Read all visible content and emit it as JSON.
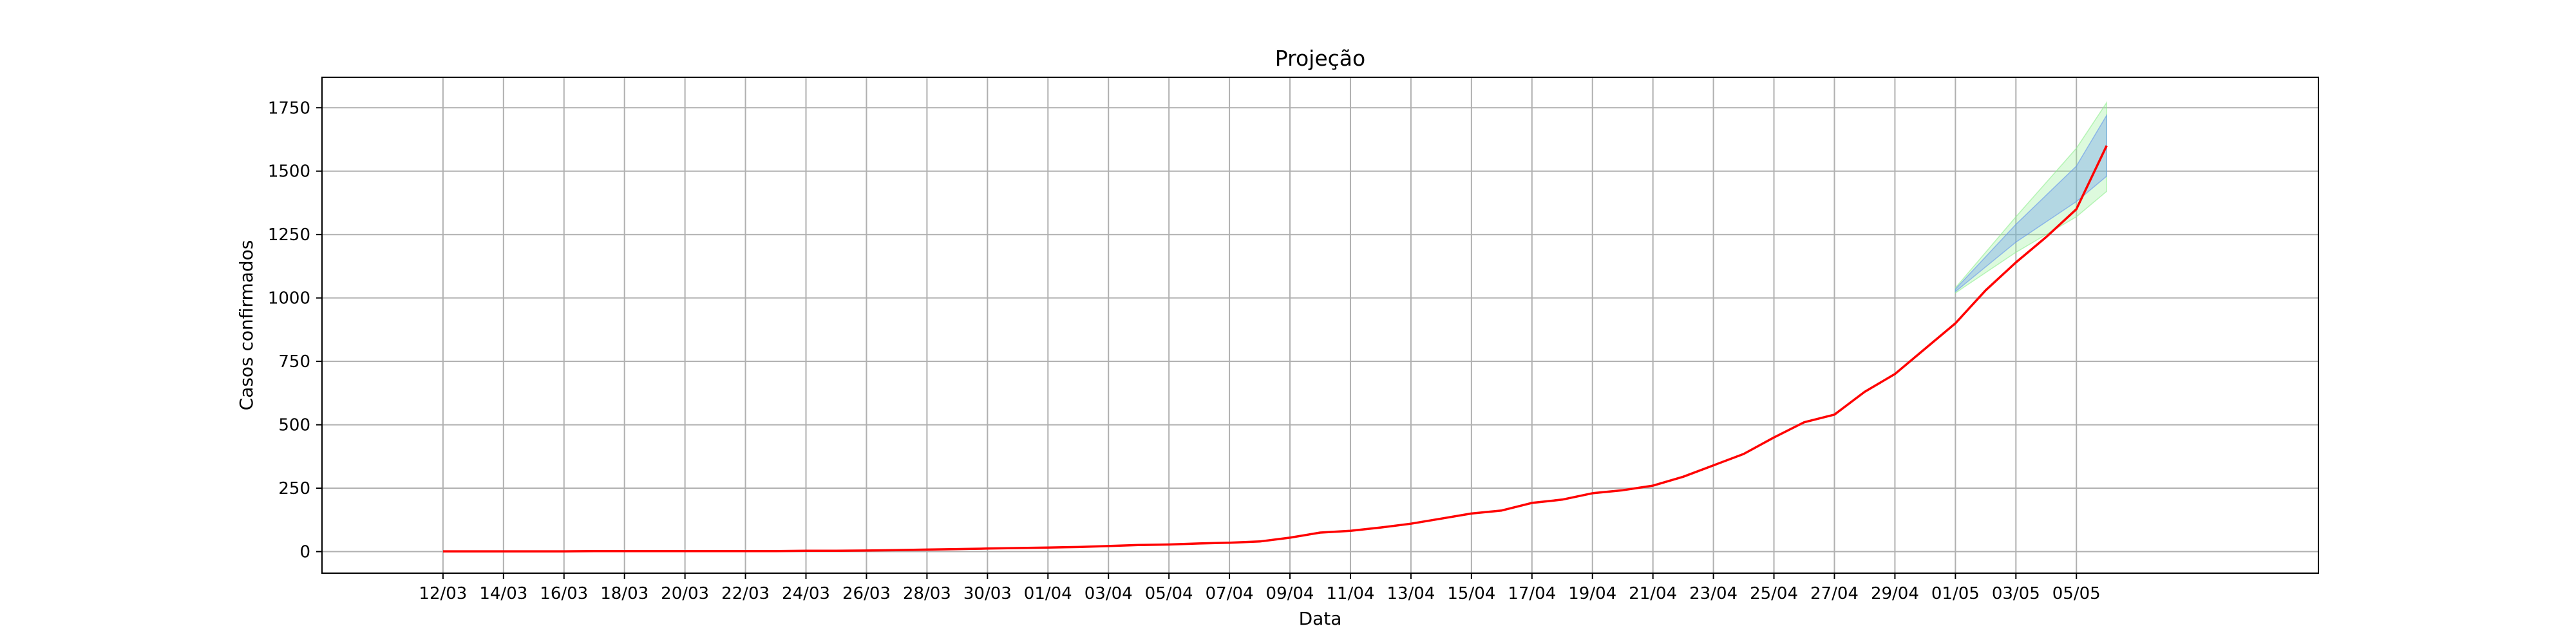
{
  "chart_data": {
    "type": "line",
    "title": "Projeção",
    "xlabel": "Data",
    "ylabel": "Casos confirmados",
    "grid": true,
    "legend": "none",
    "ylim": [
      -85,
      1870
    ],
    "xlim": [
      "2020-03-08",
      "2020-05-13"
    ],
    "xticks": [
      "12/03",
      "14/03",
      "16/03",
      "18/03",
      "20/03",
      "22/03",
      "24/03",
      "26/03",
      "28/03",
      "30/03",
      "01/04",
      "03/04",
      "05/04",
      "07/04",
      "09/04",
      "11/04",
      "13/04",
      "15/04",
      "17/04",
      "19/04",
      "21/04",
      "23/04",
      "25/04",
      "27/04",
      "29/04",
      "01/05",
      "03/05",
      "05/05"
    ],
    "yticks": [
      0,
      250,
      500,
      750,
      1000,
      1250,
      1500,
      1750
    ],
    "x": [
      "2020-03-12",
      "2020-03-13",
      "2020-03-14",
      "2020-03-15",
      "2020-03-16",
      "2020-03-17",
      "2020-03-18",
      "2020-03-19",
      "2020-03-20",
      "2020-03-21",
      "2020-03-22",
      "2020-03-23",
      "2020-03-24",
      "2020-03-25",
      "2020-03-26",
      "2020-03-27",
      "2020-03-28",
      "2020-03-29",
      "2020-03-30",
      "2020-03-31",
      "2020-04-01",
      "2020-04-02",
      "2020-04-03",
      "2020-04-04",
      "2020-04-05",
      "2020-04-06",
      "2020-04-07",
      "2020-04-08",
      "2020-04-09",
      "2020-04-10",
      "2020-04-11",
      "2020-04-12",
      "2020-04-13",
      "2020-04-14",
      "2020-04-15",
      "2020-04-16",
      "2020-04-17",
      "2020-04-18",
      "2020-04-19",
      "2020-04-20",
      "2020-04-21",
      "2020-04-22",
      "2020-04-23",
      "2020-04-24",
      "2020-04-25",
      "2020-04-26",
      "2020-04-27",
      "2020-04-28",
      "2020-04-29",
      "2020-04-30",
      "2020-05-01",
      "2020-05-02",
      "2020-05-03",
      "2020-05-04",
      "2020-05-05",
      "2020-05-06"
    ],
    "series": [
      {
        "color": "#ff0000",
        "values": [
          1,
          1,
          1,
          1,
          1,
          2,
          2,
          2,
          2,
          2,
          2,
          2,
          3,
          3,
          4,
          6,
          8,
          10,
          12,
          14,
          16,
          18,
          22,
          26,
          28,
          32,
          35,
          40,
          55,
          75,
          82,
          95,
          110,
          130,
          150,
          162,
          192,
          205,
          230,
          242,
          260,
          295,
          340,
          385,
          450,
          510,
          540,
          630,
          700,
          800,
          900,
          1030,
          1140,
          1240,
          1350,
          1600
        ]
      }
    ],
    "bands": [
      {
        "color": "#90ee90",
        "x": [
          "2020-05-01",
          "2020-05-03",
          "2020-05-05",
          "2020-05-06"
        ],
        "lower": [
          1020,
          1180,
          1320,
          1420
        ],
        "upper": [
          1040,
          1320,
          1590,
          1770
        ]
      },
      {
        "color": "#6495ed",
        "x": [
          "2020-05-01",
          "2020-05-03",
          "2020-05-05",
          "2020-05-06"
        ],
        "lower": [
          1025,
          1220,
          1380,
          1480
        ],
        "upper": [
          1035,
          1290,
          1520,
          1720
        ]
      }
    ]
  }
}
